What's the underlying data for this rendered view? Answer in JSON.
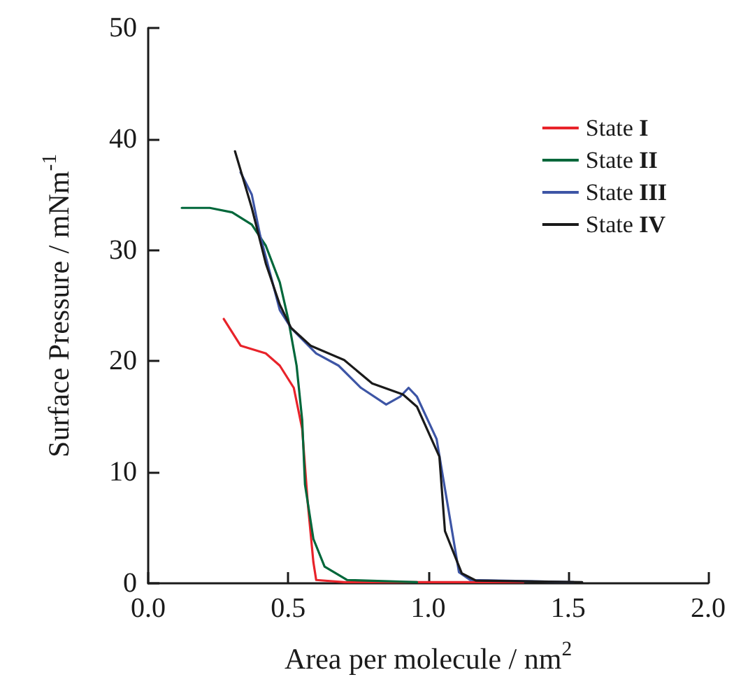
{
  "chart_data": {
    "type": "line",
    "xlabel": "Area per molecule / nm$^{2}$",
    "ylabel": "Surface Pressure / mNm$^{-1}$",
    "xlim": [
      0,
      2
    ],
    "xticks": [
      {
        "value": 0,
        "label": "0.0"
      },
      {
        "value": 0.5,
        "label": "0.5"
      },
      {
        "value": 1,
        "label": "1.0"
      },
      {
        "value": 1.5,
        "label": "1.5"
      },
      {
        "value": 2,
        "label": "2.0"
      }
    ],
    "ylim": [
      0,
      50
    ],
    "yticks": [
      0,
      10,
      20,
      30,
      40,
      50
    ],
    "grid": false,
    "legend": "top right",
    "marker": "none",
    "line_style": "solid",
    "series": [
      {
        "name": "State I",
        "color": "#e8232a",
        "x": [
          0.27,
          0.33,
          0.42,
          0.47,
          0.52,
          0.55,
          0.57,
          0.59,
          0.6,
          0.7,
          1.0,
          1.34
        ],
        "values": [
          23.8,
          21.4,
          20.7,
          19.6,
          17.6,
          13.9,
          7.2,
          1.9,
          0.3,
          0.1,
          0.1,
          0.1
        ]
      },
      {
        "name": "State II",
        "color": "#00673a",
        "x": [
          0.12,
          0.22,
          0.3,
          0.37,
          0.42,
          0.47,
          0.5,
          0.53,
          0.55,
          0.56,
          0.59,
          0.63,
          0.71,
          0.96
        ],
        "values": [
          33.8,
          33.8,
          33.4,
          32.3,
          30.4,
          27.1,
          23.8,
          19.6,
          14.7,
          8.9,
          4.0,
          1.5,
          0.3,
          0.1
        ]
      },
      {
        "name": "State III",
        "color": "#3d55a5",
        "x": [
          0.33,
          0.37,
          0.4,
          0.47,
          0.51,
          0.6,
          0.68,
          0.76,
          0.85,
          0.9,
          0.93,
          0.96,
          1.03,
          1.11,
          1.15,
          1.52
        ],
        "values": [
          37.0,
          35.0,
          31.3,
          24.6,
          23.0,
          20.7,
          19.6,
          17.6,
          16.1,
          16.8,
          17.6,
          16.8,
          13.0,
          1.0,
          0.3,
          0.1
        ]
      },
      {
        "name": "State IV",
        "color": "#1a1a1a",
        "x": [
          0.31,
          0.37,
          0.42,
          0.47,
          0.51,
          0.58,
          0.7,
          0.8,
          0.91,
          0.96,
          1.04,
          1.06,
          1.12,
          1.17,
          1.55
        ],
        "values": [
          38.9,
          33.8,
          28.8,
          25.1,
          23.0,
          21.4,
          20.1,
          18.0,
          17.0,
          15.9,
          11.4,
          4.7,
          0.9,
          0.25,
          0.1
        ]
      }
    ]
  }
}
